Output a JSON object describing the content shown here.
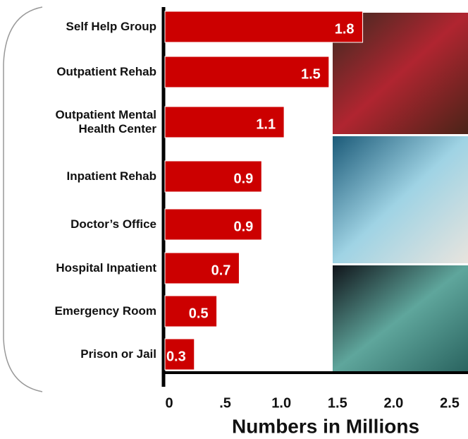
{
  "chart_data": {
    "type": "bar",
    "orientation": "horizontal",
    "categories": [
      "Self Help Group",
      "Outpatient Rehab",
      "Outpatient Mental Health Center",
      "Inpatient Rehab",
      "Doctor’s Office",
      "Hospital Inpatient",
      "Emergency Room",
      "Prison or Jail"
    ],
    "values": [
      1.8,
      1.5,
      1.1,
      0.9,
      0.9,
      0.7,
      0.5,
      0.3
    ],
    "color": "#cc0000",
    "xlabel": "Numbers in Millions",
    "xlim": [
      0,
      2.5
    ],
    "xticks": [
      0,
      {
        "value": 0.5,
        "label": ".5"
      },
      {
        "value": 1,
        "label": "1.0"
      },
      1.5,
      {
        "value": 2,
        "label": "2.0"
      },
      2.5
    ]
  }
}
